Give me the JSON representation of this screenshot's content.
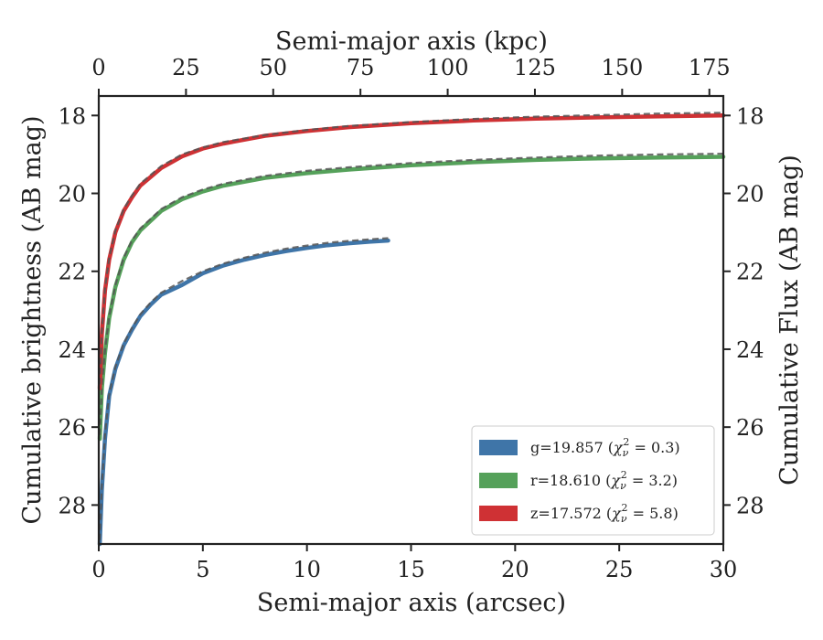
{
  "chart_data": {
    "type": "line",
    "xlabel": "Semi-major axis (arcsec)",
    "ylabel": "Cumulative brightness (AB mag)",
    "x2label": "Semi-major axis (kpc)",
    "y2label": "Cumulative Flux (AB mag)",
    "xlim": [
      0,
      30
    ],
    "ylim": [
      29.0,
      17.5
    ],
    "x2lim": [
      0,
      179
    ],
    "y_inverted": true,
    "x_ticks": [
      "0",
      "5",
      "10",
      "15",
      "20",
      "25",
      "30"
    ],
    "y_ticks": [
      "18",
      "20",
      "22",
      "24",
      "26",
      "28"
    ],
    "x2_ticks": [
      "0",
      "25",
      "50",
      "75",
      "100",
      "125",
      "150",
      "175"
    ],
    "y2_ticks": [
      "18",
      "20",
      "22",
      "24",
      "26",
      "28"
    ],
    "grid": false,
    "legend_position": "bottom-right",
    "series": [
      {
        "name": "g=19.857",
        "legend_chi": "0.3",
        "color": "#3f75a8",
        "x": [
          0.05,
          0.15,
          0.3,
          0.5,
          0.8,
          1.2,
          1.6,
          2.0,
          2.5,
          3.0,
          4.0,
          5.0,
          6.0,
          7.0,
          8.0,
          9.0,
          10.0,
          11.0,
          12.0,
          13.0,
          13.9
        ],
        "y": [
          29.0,
          27.6,
          26.3,
          25.2,
          24.5,
          23.9,
          23.5,
          23.15,
          22.85,
          22.6,
          22.35,
          22.05,
          21.85,
          21.7,
          21.58,
          21.48,
          21.4,
          21.33,
          21.28,
          21.24,
          21.21
        ],
        "model": [
          0.05,
          0.15,
          0.3,
          0.5,
          0.8,
          1.2,
          1.6,
          2.0,
          2.5,
          3.0,
          4.0,
          5.0,
          6.0,
          7.0,
          8.0,
          9.0,
          10.0,
          11.0,
          12.0,
          13.0,
          13.9
        ],
        "model_y": [
          28.9,
          27.5,
          26.2,
          25.15,
          24.45,
          23.85,
          23.45,
          23.1,
          22.8,
          22.55,
          22.25,
          22.0,
          21.8,
          21.65,
          21.52,
          21.42,
          21.34,
          21.27,
          21.22,
          21.18,
          21.15
        ]
      },
      {
        "name": "r=18.610",
        "legend_chi": "3.2",
        "color": "#55a15a",
        "x": [
          0.05,
          0.15,
          0.3,
          0.5,
          0.8,
          1.2,
          1.6,
          2.0,
          3.0,
          4.0,
          5.0,
          6.0,
          8.0,
          10.0,
          12.0,
          15.0,
          18.0,
          21.0,
          24.0,
          27.0,
          30.0
        ],
        "y": [
          26.3,
          25.0,
          24.1,
          23.2,
          22.4,
          21.7,
          21.25,
          20.95,
          20.45,
          20.15,
          19.95,
          19.8,
          19.6,
          19.48,
          19.39,
          19.28,
          19.2,
          19.14,
          19.1,
          19.08,
          19.06
        ],
        "model": [
          0.05,
          0.15,
          0.3,
          0.5,
          0.8,
          1.2,
          1.6,
          2.0,
          3.0,
          4.0,
          5.0,
          6.0,
          8.0,
          10.0,
          12.0,
          15.0,
          18.0,
          21.0,
          24.0,
          27.0,
          30.0
        ],
        "model_y": [
          26.2,
          24.95,
          24.05,
          23.15,
          22.35,
          21.65,
          21.2,
          20.9,
          20.4,
          20.1,
          19.9,
          19.75,
          19.55,
          19.42,
          19.33,
          19.22,
          19.14,
          19.08,
          19.03,
          19.0,
          18.98
        ]
      },
      {
        "name": "z=17.572",
        "legend_chi": "5.8",
        "color": "#cf3134",
        "x": [
          0.05,
          0.15,
          0.3,
          0.5,
          0.8,
          1.2,
          1.6,
          2.0,
          3.0,
          4.0,
          5.0,
          6.0,
          8.0,
          10.0,
          12.0,
          15.0,
          18.0,
          21.0,
          24.0,
          27.0,
          30.0
        ],
        "y": [
          25.0,
          23.6,
          22.5,
          21.7,
          21.0,
          20.45,
          20.1,
          19.8,
          19.35,
          19.05,
          18.85,
          18.72,
          18.52,
          18.4,
          18.3,
          18.2,
          18.13,
          18.08,
          18.05,
          18.02,
          18.0
        ],
        "model": [
          0.05,
          0.15,
          0.3,
          0.5,
          0.8,
          1.2,
          1.6,
          2.0,
          3.0,
          4.0,
          5.0,
          6.0,
          8.0,
          10.0,
          12.0,
          15.0,
          18.0,
          21.0,
          24.0,
          27.0,
          30.0
        ],
        "model_y": [
          24.9,
          23.55,
          22.45,
          21.65,
          20.95,
          20.4,
          20.05,
          19.75,
          19.3,
          19.0,
          18.82,
          18.68,
          18.5,
          18.37,
          18.27,
          18.17,
          18.09,
          18.03,
          17.99,
          17.95,
          17.93
        ]
      }
    ]
  }
}
